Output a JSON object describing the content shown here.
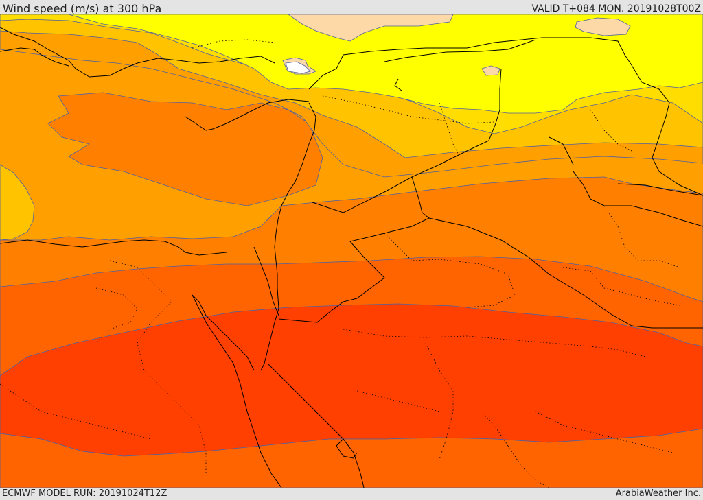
{
  "header": {
    "title": "Wind speed (m/s) at 300 hPa",
    "valid": "VALID T+084 MON. 20191028T00Z"
  },
  "footer": {
    "model_run": "ECMWF MODEL RUN: 20191024T12Z",
    "credit": "ArabiaWeather Inc."
  },
  "colors": {
    "pale_peach": "#fcd9a6",
    "yellow": "#ffff00",
    "gold": "#ffdd00",
    "amber": "#ffc300",
    "orange_light": "#ff9f00",
    "orange": "#ff8000",
    "orange_dark": "#ff6400",
    "red_orange": "#ff4000",
    "white": "#ffffff",
    "contour": "#5060a0",
    "border": "#000000"
  }
}
